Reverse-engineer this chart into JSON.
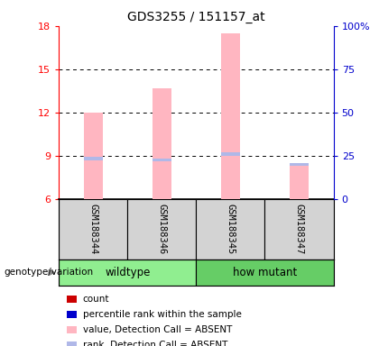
{
  "title": "GDS3255 / 151157_at",
  "samples": [
    "GSM188344",
    "GSM188346",
    "GSM188345",
    "GSM188347"
  ],
  "groups": [
    "wildtype",
    "wildtype",
    "how mutant",
    "how mutant"
  ],
  "group_colors": [
    "#90EE90",
    "#66CD66"
  ],
  "bar_bg_color": "#D3D3D3",
  "ylim_left": [
    6,
    18
  ],
  "ylim_right": [
    0,
    100
  ],
  "yticks_left": [
    6,
    9,
    12,
    15,
    18
  ],
  "yticks_right": [
    0,
    25,
    50,
    75,
    100
  ],
  "ytick_labels_right": [
    "0",
    "25",
    "50",
    "75",
    "100%"
  ],
  "pink_bar_values": [
    12.0,
    13.7,
    17.5,
    8.3
  ],
  "blue_bar_values": [
    8.8,
    8.7,
    9.1,
    8.4
  ],
  "pink_color": "#FFB6C1",
  "blue_color": "#B0B8E8",
  "left_axis_color": "#FF0000",
  "right_axis_color": "#0000CC",
  "bar_width": 0.28,
  "x_positions": [
    1,
    2,
    3,
    4
  ],
  "legend_items": [
    {
      "color": "#CC0000",
      "label": "count"
    },
    {
      "color": "#0000CC",
      "label": "percentile rank within the sample"
    },
    {
      "color": "#FFB6C1",
      "label": "value, Detection Call = ABSENT"
    },
    {
      "color": "#B0B8E8",
      "label": "rank, Detection Call = ABSENT"
    }
  ],
  "genotype_label": "genotype/variation",
  "baseline": 6
}
